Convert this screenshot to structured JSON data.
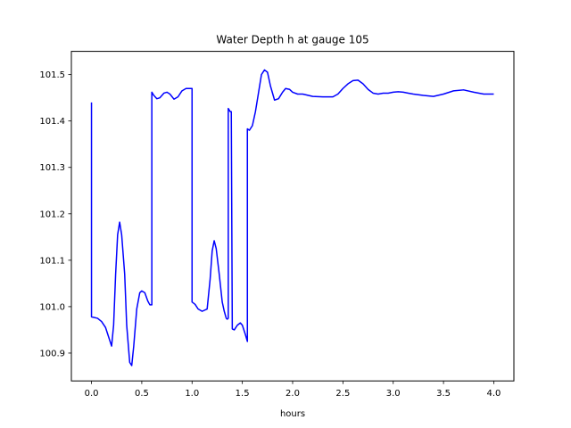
{
  "chart_data": {
    "type": "line",
    "title": "Water Depth h at gauge 105",
    "xlabel": "hours",
    "ylabel": "",
    "xlim": [
      -0.2,
      4.2
    ],
    "ylim": [
      100.84,
      101.55
    ],
    "xticks": [
      {
        "v": 0.0,
        "label": "0.0"
      },
      {
        "v": 0.5,
        "label": "0.5"
      },
      {
        "v": 1.0,
        "label": "1.0"
      },
      {
        "v": 1.5,
        "label": "1.5"
      },
      {
        "v": 2.0,
        "label": "2.0"
      },
      {
        "v": 2.5,
        "label": "2.5"
      },
      {
        "v": 3.0,
        "label": "3.0"
      },
      {
        "v": 3.5,
        "label": "3.5"
      },
      {
        "v": 4.0,
        "label": "4.0"
      }
    ],
    "yticks": [
      {
        "v": 100.9,
        "label": "100.9"
      },
      {
        "v": 101.0,
        "label": "101.0"
      },
      {
        "v": 101.1,
        "label": "101.1"
      },
      {
        "v": 101.2,
        "label": "101.2"
      },
      {
        "v": 101.3,
        "label": "101.3"
      },
      {
        "v": 101.4,
        "label": "101.4"
      },
      {
        "v": 101.5,
        "label": "101.5"
      }
    ],
    "grid": false,
    "legend": "none",
    "series": [
      {
        "color": "#0000ff",
        "x": [
          0.0,
          0.0,
          0.02,
          0.06,
          0.1,
          0.14,
          0.17,
          0.2,
          0.22,
          0.24,
          0.26,
          0.28,
          0.3,
          0.33,
          0.35,
          0.38,
          0.4,
          0.42,
          0.45,
          0.48,
          0.5,
          0.53,
          0.56,
          0.58,
          0.6,
          0.6,
          0.62,
          0.65,
          0.68,
          0.72,
          0.75,
          0.78,
          0.82,
          0.86,
          0.9,
          0.94,
          0.97,
          0.99,
          1.0,
          1.0,
          1.03,
          1.06,
          1.1,
          1.15,
          1.18,
          1.2,
          1.22,
          1.24,
          1.27,
          1.3,
          1.32,
          1.34,
          1.35,
          1.36,
          1.36,
          1.38,
          1.39,
          1.39,
          1.4,
          1.42,
          1.45,
          1.48,
          1.5,
          1.53,
          1.55,
          1.55,
          1.57,
          1.6,
          1.63,
          1.66,
          1.69,
          1.72,
          1.75,
          1.78,
          1.82,
          1.86,
          1.9,
          1.93,
          1.97,
          2.0,
          2.05,
          2.1,
          2.2,
          2.3,
          2.4,
          2.45,
          2.5,
          2.55,
          2.6,
          2.65,
          2.7,
          2.75,
          2.8,
          2.85,
          2.9,
          2.95,
          3.0,
          3.05,
          3.1,
          3.15,
          3.2,
          3.3,
          3.4,
          3.5,
          3.6,
          3.7,
          3.8,
          3.9,
          4.0
        ],
        "y": [
          101.44,
          100.978,
          100.977,
          100.975,
          100.968,
          100.955,
          100.935,
          100.915,
          100.96,
          101.07,
          101.155,
          101.182,
          101.155,
          101.07,
          100.96,
          100.88,
          100.873,
          100.915,
          100.995,
          101.03,
          101.034,
          101.03,
          101.012,
          101.004,
          101.004,
          101.462,
          101.455,
          101.448,
          101.45,
          101.46,
          101.462,
          101.458,
          101.447,
          101.452,
          101.465,
          101.47,
          101.47,
          101.47,
          101.47,
          101.01,
          101.005,
          100.995,
          100.99,
          100.995,
          101.06,
          101.12,
          101.142,
          101.125,
          101.07,
          101.01,
          100.99,
          100.975,
          100.973,
          100.975,
          101.427,
          101.42,
          101.42,
          101.42,
          100.952,
          100.95,
          100.96,
          100.965,
          100.96,
          100.94,
          100.925,
          101.383,
          101.38,
          101.39,
          101.42,
          101.46,
          101.5,
          101.51,
          101.505,
          101.475,
          101.445,
          101.448,
          101.462,
          101.47,
          101.468,
          101.462,
          101.458,
          101.458,
          101.453,
          101.452,
          101.452,
          101.458,
          101.47,
          101.48,
          101.487,
          101.488,
          101.48,
          101.468,
          101.46,
          101.458,
          101.46,
          101.46,
          101.462,
          101.463,
          101.462,
          101.46,
          101.458,
          101.455,
          101.453,
          101.458,
          101.465,
          101.467,
          101.462,
          101.458,
          101.458
        ]
      }
    ]
  }
}
